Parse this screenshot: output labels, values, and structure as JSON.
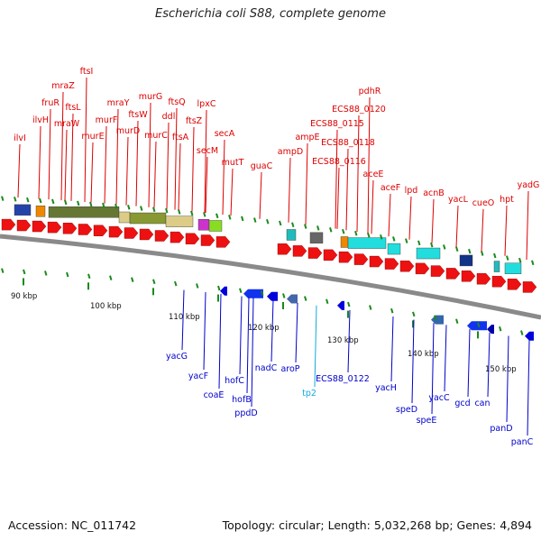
{
  "title": "Escherichia coli S88, complete genome",
  "footer": {
    "accession": "Accession: NC_011742",
    "summary": "Topology: circular; Length: 5,032,268 bp; Genes: 4,894"
  },
  "colors": {
    "forward_label": "#dd0000",
    "reverse_label": "#0000cc",
    "rna_label": "#11aadd",
    "backbone": "#8a8a8a",
    "tick": "#1a8a1a"
  },
  "kbp_labels": [
    "90 kbp",
    "100 kbp",
    "110 kbp",
    "120 kbp",
    "130 kbp",
    "140 kbp",
    "150 kbp"
  ],
  "forward_genes": [
    "ilvI",
    "ilvH",
    "fruR",
    "mraZ",
    "mraW",
    "ftsL",
    "ftsI",
    "murE",
    "murF",
    "mraY",
    "murD",
    "ftsW",
    "murG",
    "murC",
    "ddl",
    "ftsQ",
    "ftsA",
    "ftsZ",
    "lpxC",
    "secM",
    "secA",
    "mutT",
    "guaC",
    "ampD",
    "ampE",
    "ECS88_0115",
    "ECS88_0116",
    "ECS88_0118",
    "ECS88_0120",
    "pdhR",
    "aceE",
    "aceF",
    "lpd",
    "acnB",
    "yacL",
    "cueO",
    "hpt",
    "yadG"
  ],
  "reverse_genes": [
    "yacG",
    "yacF",
    "coaE",
    "hofC",
    "hofB",
    "ppdD",
    "nadC",
    "aroP",
    "tp2",
    "ECS88_0122",
    "yacH",
    "speD",
    "speE",
    "yacC",
    "gcd",
    "can",
    "panD",
    "panC"
  ]
}
